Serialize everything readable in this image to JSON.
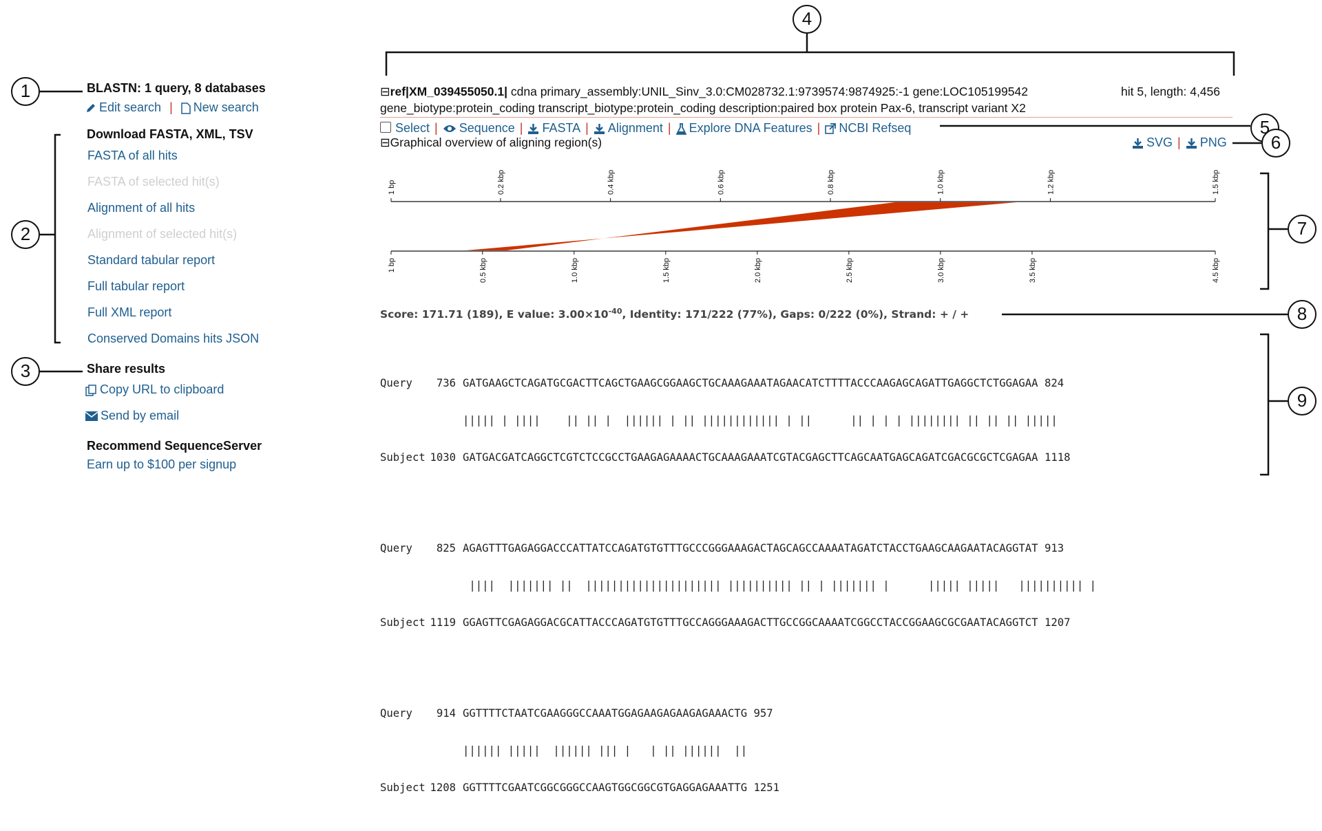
{
  "sidebar": {
    "query_title": "BLASTN: 1 query, 8 databases",
    "edit_search": "Edit search",
    "new_search": "New search",
    "download_heading": "Download FASTA, XML, TSV",
    "downloads": [
      {
        "label": "FASTA of all hits",
        "enabled": true
      },
      {
        "label": "FASTA of selected hit(s)",
        "enabled": false
      },
      {
        "label": "Alignment of all hits",
        "enabled": true
      },
      {
        "label": "Alignment of selected hit(s)",
        "enabled": false
      },
      {
        "label": "Standard tabular report",
        "enabled": true
      },
      {
        "label": "Full tabular report",
        "enabled": true
      },
      {
        "label": "Full XML report",
        "enabled": true
      },
      {
        "label": "Conserved Domains hits JSON",
        "enabled": true
      }
    ],
    "share_heading": "Share results",
    "copy_url": "Copy URL to clipboard",
    "send_email": "Send by email",
    "recommend_heading": "Recommend SequenceServer",
    "recommend_link": "Earn up to $100 per signup"
  },
  "callouts": [
    "1",
    "2",
    "3",
    "4",
    "5",
    "6",
    "7",
    "8",
    "9"
  ],
  "hit": {
    "collapse_symbol": "⊟",
    "accession": "ref|XM_039455050.1|",
    "description_line1": " cdna primary_assembly:UNIL_Sinv_3.0:CM028732.1:9739574:9874925:-1 gene:LOC105199542",
    "meta": "hit 5, length: 4,456",
    "description_line2": "gene_biotype:protein_coding transcript_biotype:protein_coding description:paired box protein Pax-6, transcript variant X2",
    "actions": {
      "select": "Select",
      "sequence": "Sequence",
      "fasta": "FASTA",
      "alignment": "Alignment",
      "explore": "Explore DNA Features",
      "ncbi": "NCBI Refseq"
    },
    "graphical_overview": "Graphical overview of aligning region(s)",
    "export_svg": "SVG",
    "export_png": "PNG"
  },
  "chart_data": {
    "type": "alignment-overview",
    "subject_axis": {
      "range_bp": [
        1,
        1500
      ],
      "tick_values_bp": [
        1,
        200,
        400,
        600,
        800,
        1000,
        1200,
        1500
      ],
      "tick_labels": [
        "1 bp",
        "0.2 kbp",
        "0.4 kbp",
        "0.6 kbp",
        "0.8 kbp",
        "1.0 kbp",
        "1.2 kbp",
        "1.5 kbp"
      ]
    },
    "query_axis": {
      "range_bp": [
        1,
        4500
      ],
      "tick_values_bp": [
        1,
        500,
        1000,
        1500,
        2000,
        2500,
        3000,
        3500,
        4500
      ],
      "tick_labels": [
        "1 bp",
        "0.5 kbp",
        "1.0 kbp",
        "1.5 kbp",
        "2.0 kbp",
        "2.5 kbp",
        "3.0 kbp",
        "3.5 kbp",
        "4.5 kbp"
      ]
    },
    "hsp": {
      "subject_start": 736,
      "subject_end": 957,
      "query_start": 1030,
      "query_end": 1251,
      "color": "#cc3300"
    }
  },
  "hsp_stats": {
    "score_label": "Score: ",
    "score": "171.71 (189)",
    "evalue_label": ", E value: ",
    "evalue_base": "3.00×10",
    "evalue_exp": "-40",
    "identity_label": ", Identity: ",
    "identity": "171/222 (77%)",
    "gaps_label": ", Gaps: ",
    "gaps": "0/222 (0%)",
    "strand_label": ", Strand: ",
    "strand": "+ / +"
  },
  "alignment": [
    {
      "q_label": "Query",
      "q_start": "736",
      "q_seq": "GATGAAGCTCAGATGCGACTTCAGCTGAAGCGGAAGCTGCAAAGAAATAGAACATCTTTTACCCAAGAGCAGATTGAGGCTCTGGAGAA",
      "q_end": "824",
      "midline": "||||| | ||||    || || |  |||||| | || |||||||||||| | ||      || | | | |||||||| || || || |||||",
      "s_label": "Subject",
      "s_start": "1030",
      "s_seq": "GATGACGATCAGGCTCGTCTCCGCCTGAAGAGAAAACTGCAAAGAAATCGTACGAGCTTCAGCAATGAGCAGATCGACGCGCTCGAGAA",
      "s_end": "1118"
    },
    {
      "q_label": "Query",
      "q_start": "825",
      "q_seq": "AGAGTTTGAGAGGACCCATTATCCAGATGTGTTTGCCCGGGAAAGACTAGCAGCCAAAATAGATCTACCTGAAGCAAGAATACAGGTAT",
      "q_end": "913",
      "midline": " ||||  ||||||| ||  ||||||||||||||||||||| |||||||||| || | ||||||| |      ||||| |||||   |||||||||| |",
      "s_label": "Subject",
      "s_start": "1119",
      "s_seq": "GGAGTTCGAGAGGACGCATTACCCAGATGTGTTTGCCAGGGAAAGACTTGCCGGCAAAATCGGCCTACCGGAAGCGCGAATACAGGTCT",
      "s_end": "1207"
    },
    {
      "q_label": "Query",
      "q_start": "914",
      "q_seq": "GGTTTTCTAATCGAAGGGCCAAATGGAGAAGAGAAGAGAAACTG",
      "q_end": "957",
      "midline": "|||||| |||||  |||||| ||| |   | || ||||||  ||",
      "s_label": "Subject",
      "s_start": "1208",
      "s_seq": "GGTTTTCGAATCGGCGGGCCAAGTGGCGGCGTGAGGAGAAATTG",
      "s_end": "1251"
    }
  ]
}
